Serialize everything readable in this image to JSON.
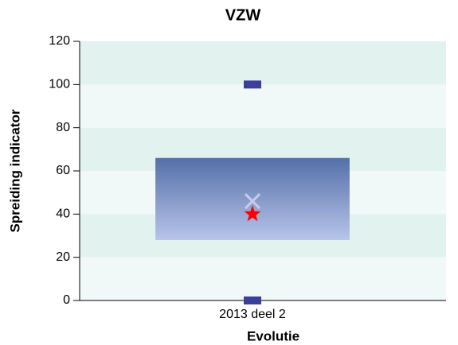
{
  "chart_data": {
    "type": "box",
    "title": "VZW",
    "y_label": "Spreiding indicator",
    "x_label": "Evolutie",
    "categories": [
      "2013 deel 2"
    ],
    "min": [
      0
    ],
    "q1": [
      28
    ],
    "median": [
      40
    ],
    "q3": [
      66
    ],
    "max": [
      100
    ],
    "mean": [
      46
    ],
    "box_color": "#5470a8",
    "marker_color": "#3a3f9a",
    "median_color": "#ff0000",
    "mean_color": "#c8cce8",
    "ylim": [
      0,
      120
    ],
    "yticks": [
      0,
      20,
      40,
      60,
      80,
      100,
      120
    ]
  }
}
